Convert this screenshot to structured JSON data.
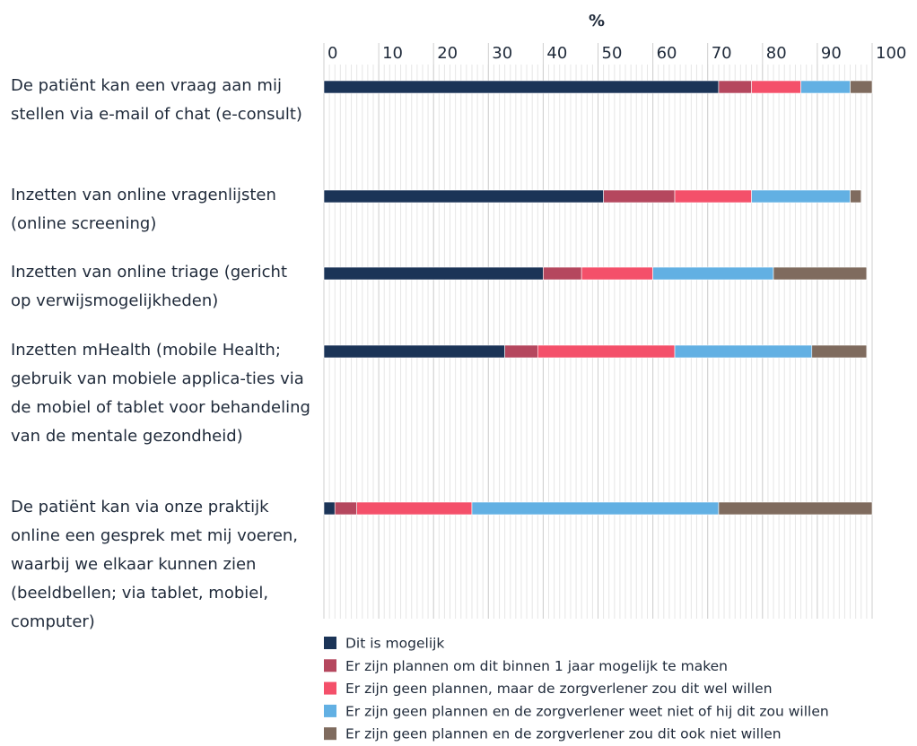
{
  "chart_data": {
    "type": "stacked_barh",
    "x_label": "%",
    "categories": [
      "De patiënt kan een vraag aan mij stellen via e-mail of chat (e-consult)",
      "Inzetten van online vragenlijsten (online screening)",
      "Inzetten van online triage (gericht op verwijsmogelijkheden)",
      "Inzetten mHealth (mobile Health; gebruik van mobiele applica-ties via de mobiel of tablet voor behandeling van de mentale gezondheid)",
      "De patiënt kan via onze praktijk online een gesprek met mij voeren, waarbij we elkaar kunnen zien (beeldbellen; via tablet, mobiel, computer)"
    ],
    "series": [
      {
        "name": "Dit is mogelijk",
        "color": "#1b3457",
        "values": [
          72,
          51,
          40,
          33,
          2
        ]
      },
      {
        "name": "Er zijn plannen om dit binnen 1 jaar mogelijk te maken",
        "color": "#b5475e",
        "values": [
          6,
          13,
          7,
          6,
          4
        ]
      },
      {
        "name": "Er zijn geen plannen, maar de zorgverlener zou dit wel willen",
        "color": "#f4506a",
        "values": [
          9,
          14,
          13,
          25,
          21
        ]
      },
      {
        "name": "Er zijn geen plannen en de zorgverlener weet niet of hij dit zou willen",
        "color": "#62b0e3",
        "values": [
          9,
          18,
          22,
          25,
          45
        ]
      },
      {
        "name": "Er zijn geen plannen en de zorgverlener zou dit ook niet willen",
        "color": "#7f6b5e",
        "values": [
          4,
          2,
          17,
          10,
          28
        ]
      }
    ],
    "xlim": [
      0,
      100
    ],
    "xticks": [
      0,
      10,
      20,
      30,
      40,
      50,
      60,
      70,
      80,
      90,
      100
    ],
    "grid": true,
    "legend": "bottom"
  }
}
